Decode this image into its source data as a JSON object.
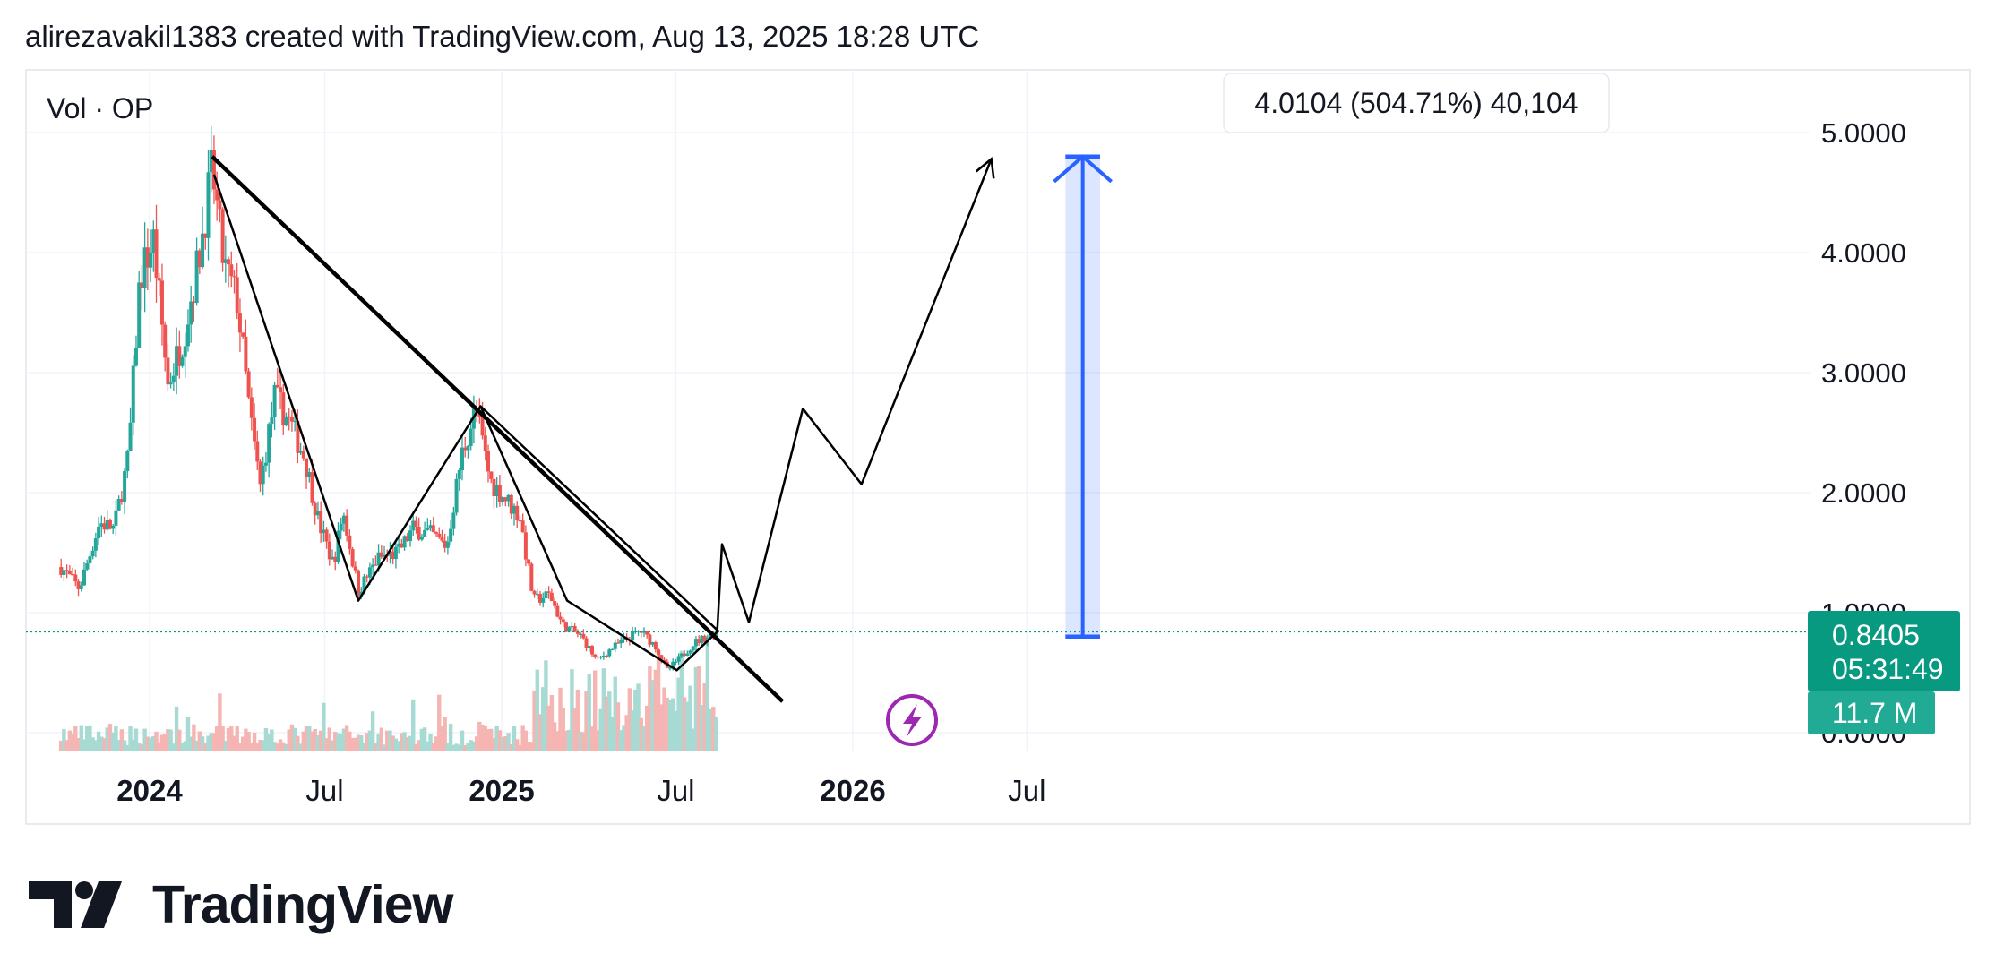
{
  "header": {
    "attribution": "alirezavakil1383 created with TradingView.com, Aug 13, 2025 18:28 UTC"
  },
  "legend": {
    "indicator": "Vol · OP"
  },
  "measure": {
    "label": "4.0104 (504.71%) 40,104"
  },
  "price_badge": {
    "price": "0.8405",
    "countdown": "05:31:49",
    "volume": "11.7 M"
  },
  "brand": {
    "name": "TradingView",
    "icon": "tradingview-logo-icon"
  },
  "icons": {
    "flash": "lightning-bolt-icon"
  },
  "colors": {
    "up": "#26a69a",
    "down": "#ef5350",
    "price_badge": "#089981",
    "volume_badge": "#22ab94",
    "measure": "#2962ff",
    "flash": "#9c27b0",
    "drawing": "#000000"
  },
  "chart_data": {
    "type": "candlestick",
    "symbol": "OP",
    "x_range": [
      "2023-10-01",
      "2026-10-01"
    ],
    "ylim": [
      0,
      5
    ],
    "grid": true,
    "y_ticks": [
      {
        "value": 0,
        "label": "0.0000"
      },
      {
        "value": 1,
        "label": "1.0000"
      },
      {
        "value": 2,
        "label": "2.0000"
      },
      {
        "value": 3,
        "label": "3.0000"
      },
      {
        "value": 4,
        "label": "4.0000"
      },
      {
        "value": 5,
        "label": "5.0000"
      }
    ],
    "x_ticks": [
      {
        "date": "2024-01-01",
        "label": "2024",
        "bold": true
      },
      {
        "date": "2024-07-01",
        "label": "Jul",
        "bold": false
      },
      {
        "date": "2025-01-01",
        "label": "2025",
        "bold": true
      },
      {
        "date": "2025-07-01",
        "label": "Jul",
        "bold": false
      },
      {
        "date": "2026-01-01",
        "label": "2026",
        "bold": true
      },
      {
        "date": "2026-07-01",
        "label": "Jul",
        "bold": false
      }
    ],
    "last_price": 0.8405,
    "price_path": [
      [
        "2023-10-01",
        1.38
      ],
      [
        "2023-10-20",
        1.2
      ],
      [
        "2023-11-10",
        1.75
      ],
      [
        "2023-11-25",
        1.7
      ],
      [
        "2023-12-10",
        2.3
      ],
      [
        "2023-12-22",
        3.8
      ],
      [
        "2024-01-05",
        4.1
      ],
      [
        "2024-01-20",
        2.9
      ],
      [
        "2024-02-05",
        3.3
      ],
      [
        "2024-02-20",
        3.9
      ],
      [
        "2024-03-06",
        4.7
      ],
      [
        "2024-03-18",
        3.9
      ],
      [
        "2024-04-01",
        3.6
      ],
      [
        "2024-04-15",
        2.6
      ],
      [
        "2024-04-25",
        2.05
      ],
      [
        "2024-05-10",
        2.8
      ],
      [
        "2024-05-25",
        2.6
      ],
      [
        "2024-06-10",
        2.3
      ],
      [
        "2024-06-25",
        1.75
      ],
      [
        "2024-07-10",
        1.4
      ],
      [
        "2024-07-20",
        1.85
      ],
      [
        "2024-08-05",
        1.18
      ],
      [
        "2024-08-25",
        1.45
      ],
      [
        "2024-09-15",
        1.5
      ],
      [
        "2024-10-01",
        1.7
      ],
      [
        "2024-10-20",
        1.65
      ],
      [
        "2024-11-05",
        1.55
      ],
      [
        "2024-11-20",
        2.3
      ],
      [
        "2024-12-05",
        2.7
      ],
      [
        "2024-12-20",
        2.1
      ],
      [
        "2025-01-05",
        1.95
      ],
      [
        "2025-01-20",
        1.8
      ],
      [
        "2025-02-03",
        1.1
      ],
      [
        "2025-02-20",
        1.15
      ],
      [
        "2025-03-05",
        0.9
      ],
      [
        "2025-03-25",
        0.8
      ],
      [
        "2025-04-10",
        0.6
      ],
      [
        "2025-04-25",
        0.7
      ],
      [
        "2025-05-10",
        0.78
      ],
      [
        "2025-05-25",
        0.85
      ],
      [
        "2025-06-10",
        0.72
      ],
      [
        "2025-06-22",
        0.52
      ],
      [
        "2025-07-05",
        0.62
      ],
      [
        "2025-07-20",
        0.75
      ],
      [
        "2025-08-13",
        0.8405
      ]
    ],
    "annotations": {
      "main_trendline": [
        [
          "2024-03-06",
          4.8
        ],
        [
          "2025-10-20",
          0.26
        ]
      ],
      "inner_trendline": [
        [
          "2024-12-10",
          2.72
        ],
        [
          "2025-08-15",
          0.84
        ]
      ],
      "zigzag_past": [
        [
          "2024-03-08",
          4.65
        ],
        [
          "2024-08-05",
          1.1
        ],
        [
          "2024-12-10",
          2.72
        ],
        [
          "2025-03-10",
          1.1
        ],
        [
          "2025-07-02",
          0.52
        ],
        [
          "2025-08-13",
          0.84
        ]
      ],
      "projection": [
        [
          "2025-08-13",
          0.84
        ],
        [
          "2025-08-18",
          1.57
        ],
        [
          "2025-09-15",
          0.92
        ],
        [
          "2025-11-10",
          2.7
        ],
        [
          "2026-01-10",
          2.07
        ],
        [
          "2026-05-25",
          4.78
        ]
      ],
      "measure_range": {
        "start": "2026-08-10",
        "end": "2026-09-15",
        "from": 0.8,
        "to": 4.8
      }
    }
  }
}
